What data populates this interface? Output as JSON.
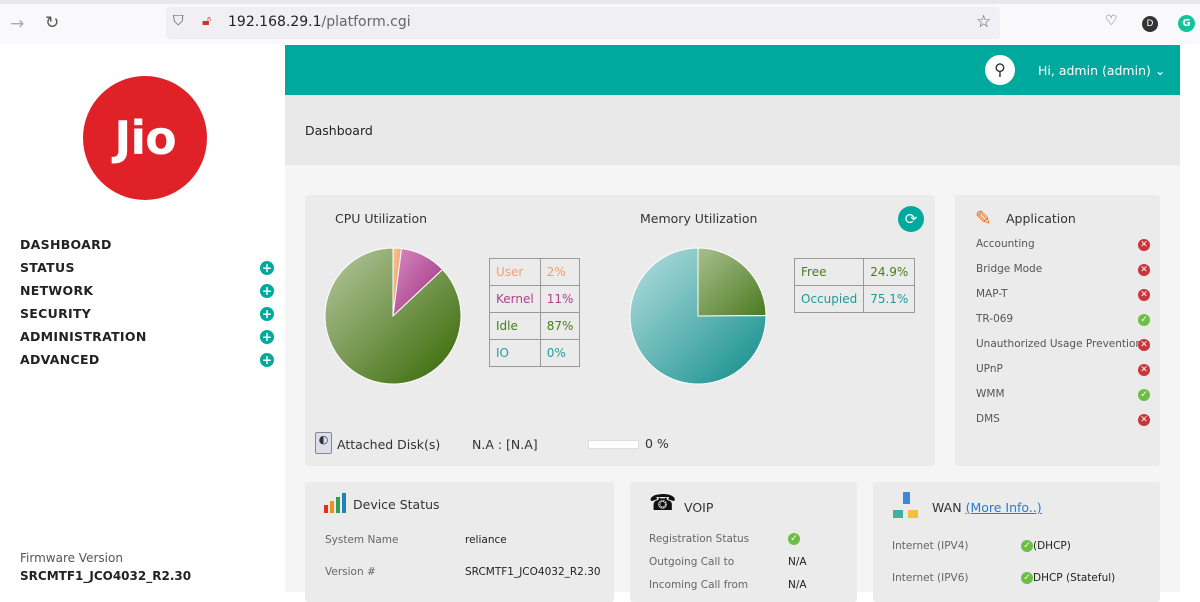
{
  "browser": {
    "url_host": "192.168.29.1",
    "url_path": "/platform.cgi",
    "profile_initial": "D"
  },
  "sidebar": {
    "logo": "Jio",
    "items": [
      {
        "label": "DASHBOARD",
        "expandable": false
      },
      {
        "label": "STATUS",
        "expandable": true
      },
      {
        "label": "NETWORK",
        "expandable": true
      },
      {
        "label": "SECURITY",
        "expandable": true
      },
      {
        "label": "ADMINISTRATION",
        "expandable": true
      },
      {
        "label": "ADVANCED",
        "expandable": true
      }
    ],
    "firmware_label": "Firmware Version",
    "firmware_value": "SRCMTF1_JCO4032_R2.30"
  },
  "header": {
    "user": "Hi, admin (admin)",
    "accent": "#00a99d"
  },
  "breadcrumb": "Dashboard",
  "chart_data": [
    {
      "type": "pie",
      "title": "CPU Utilization",
      "categories": [
        "User",
        "Kernel",
        "Idle",
        "IO"
      ],
      "values": [
        2,
        11,
        87,
        0
      ],
      "labels": [
        "2%",
        "11%",
        "87%",
        "0%"
      ],
      "colors": [
        "#f0a070",
        "#b0408f",
        "#4a7a1e",
        "#20a0a0"
      ]
    },
    {
      "type": "pie",
      "title": "Memory Utilization",
      "categories": [
        "Free",
        "Occupied"
      ],
      "values": [
        24.9,
        75.1
      ],
      "labels": [
        "24.9%",
        "75.1%"
      ],
      "colors": [
        "#4a7a1e",
        "#1a9a98"
      ]
    }
  ],
  "disk": {
    "label": "Attached Disk(s)",
    "value": "N.A : [N.A]",
    "percent": 0,
    "percent_label": "0 %"
  },
  "application": {
    "title": "Application",
    "items": [
      {
        "label": "Accounting",
        "status": "disabled"
      },
      {
        "label": "Bridge Mode",
        "status": "disabled"
      },
      {
        "label": "MAP-T",
        "status": "disabled"
      },
      {
        "label": "TR-069",
        "status": "enabled"
      },
      {
        "label": "Unauthorized Usage Prevention",
        "status": "disabled"
      },
      {
        "label": "UPnP",
        "status": "disabled"
      },
      {
        "label": "WMM",
        "status": "enabled"
      },
      {
        "label": "DMS",
        "status": "disabled"
      }
    ]
  },
  "device": {
    "title": "Device Status",
    "rows": [
      {
        "label": "System Name",
        "value": "reliance"
      },
      {
        "label": "Version #",
        "value": "SRCMTF1_JCO4032_R2.30"
      }
    ]
  },
  "voip": {
    "title": "VOIP",
    "rows": [
      {
        "label": "Registration Status",
        "value": "",
        "ok": true
      },
      {
        "label": "Outgoing Call to",
        "value": "N/A"
      },
      {
        "label": "Incoming Call from",
        "value": "N/A"
      }
    ]
  },
  "wan": {
    "title": "WAN",
    "link": "(More Info..)",
    "rows": [
      {
        "label": "Internet (IPV4)",
        "value": "(DHCP)"
      },
      {
        "label": "Internet (IPV6)",
        "value": "DHCP (Stateful)"
      }
    ]
  }
}
